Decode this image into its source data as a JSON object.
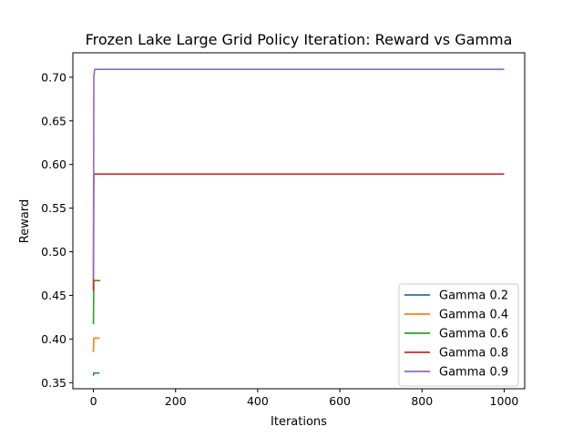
{
  "chart_data": {
    "type": "line",
    "title": "Frozen Lake Large Grid Policy Iteration: Reward vs Gamma",
    "xlabel": "Iterations",
    "ylabel": "Reward",
    "xlim": [
      -50,
      1050
    ],
    "ylim": [
      0.343,
      0.728
    ],
    "xticks": [
      0,
      200,
      400,
      600,
      800,
      1000
    ],
    "yticks": [
      0.35,
      0.4,
      0.45,
      0.5,
      0.55,
      0.6,
      0.65,
      0.7
    ],
    "ytick_labels": [
      "0.35",
      "0.40",
      "0.45",
      "0.50",
      "0.55",
      "0.60",
      "0.65",
      "0.70"
    ],
    "grid": false,
    "legend_position": "lower-right",
    "series": [
      {
        "name": "Gamma 0.2",
        "color": "#1f77b4",
        "points": [
          [
            0,
            0.358
          ],
          [
            1,
            0.361
          ],
          [
            15,
            0.361
          ]
        ]
      },
      {
        "name": "Gamma 0.4",
        "color": "#ff7f0e",
        "points": [
          [
            0,
            0.385
          ],
          [
            1,
            0.401
          ],
          [
            15,
            0.401
          ]
        ]
      },
      {
        "name": "Gamma 0.6",
        "color": "#2ca02c",
        "points": [
          [
            0,
            0.417
          ],
          [
            1,
            0.467
          ],
          [
            17,
            0.467
          ]
        ]
      },
      {
        "name": "Gamma 0.8",
        "color": "#d62728",
        "points": [
          [
            0,
            0.455
          ],
          [
            1,
            0.589
          ],
          [
            1000,
            0.589
          ]
        ]
      },
      {
        "name": "Gamma 0.9",
        "color": "#9467bd",
        "points": [
          [
            0,
            0.47
          ],
          [
            1,
            0.7
          ],
          [
            3,
            0.709
          ],
          [
            1000,
            0.709
          ]
        ]
      }
    ]
  }
}
